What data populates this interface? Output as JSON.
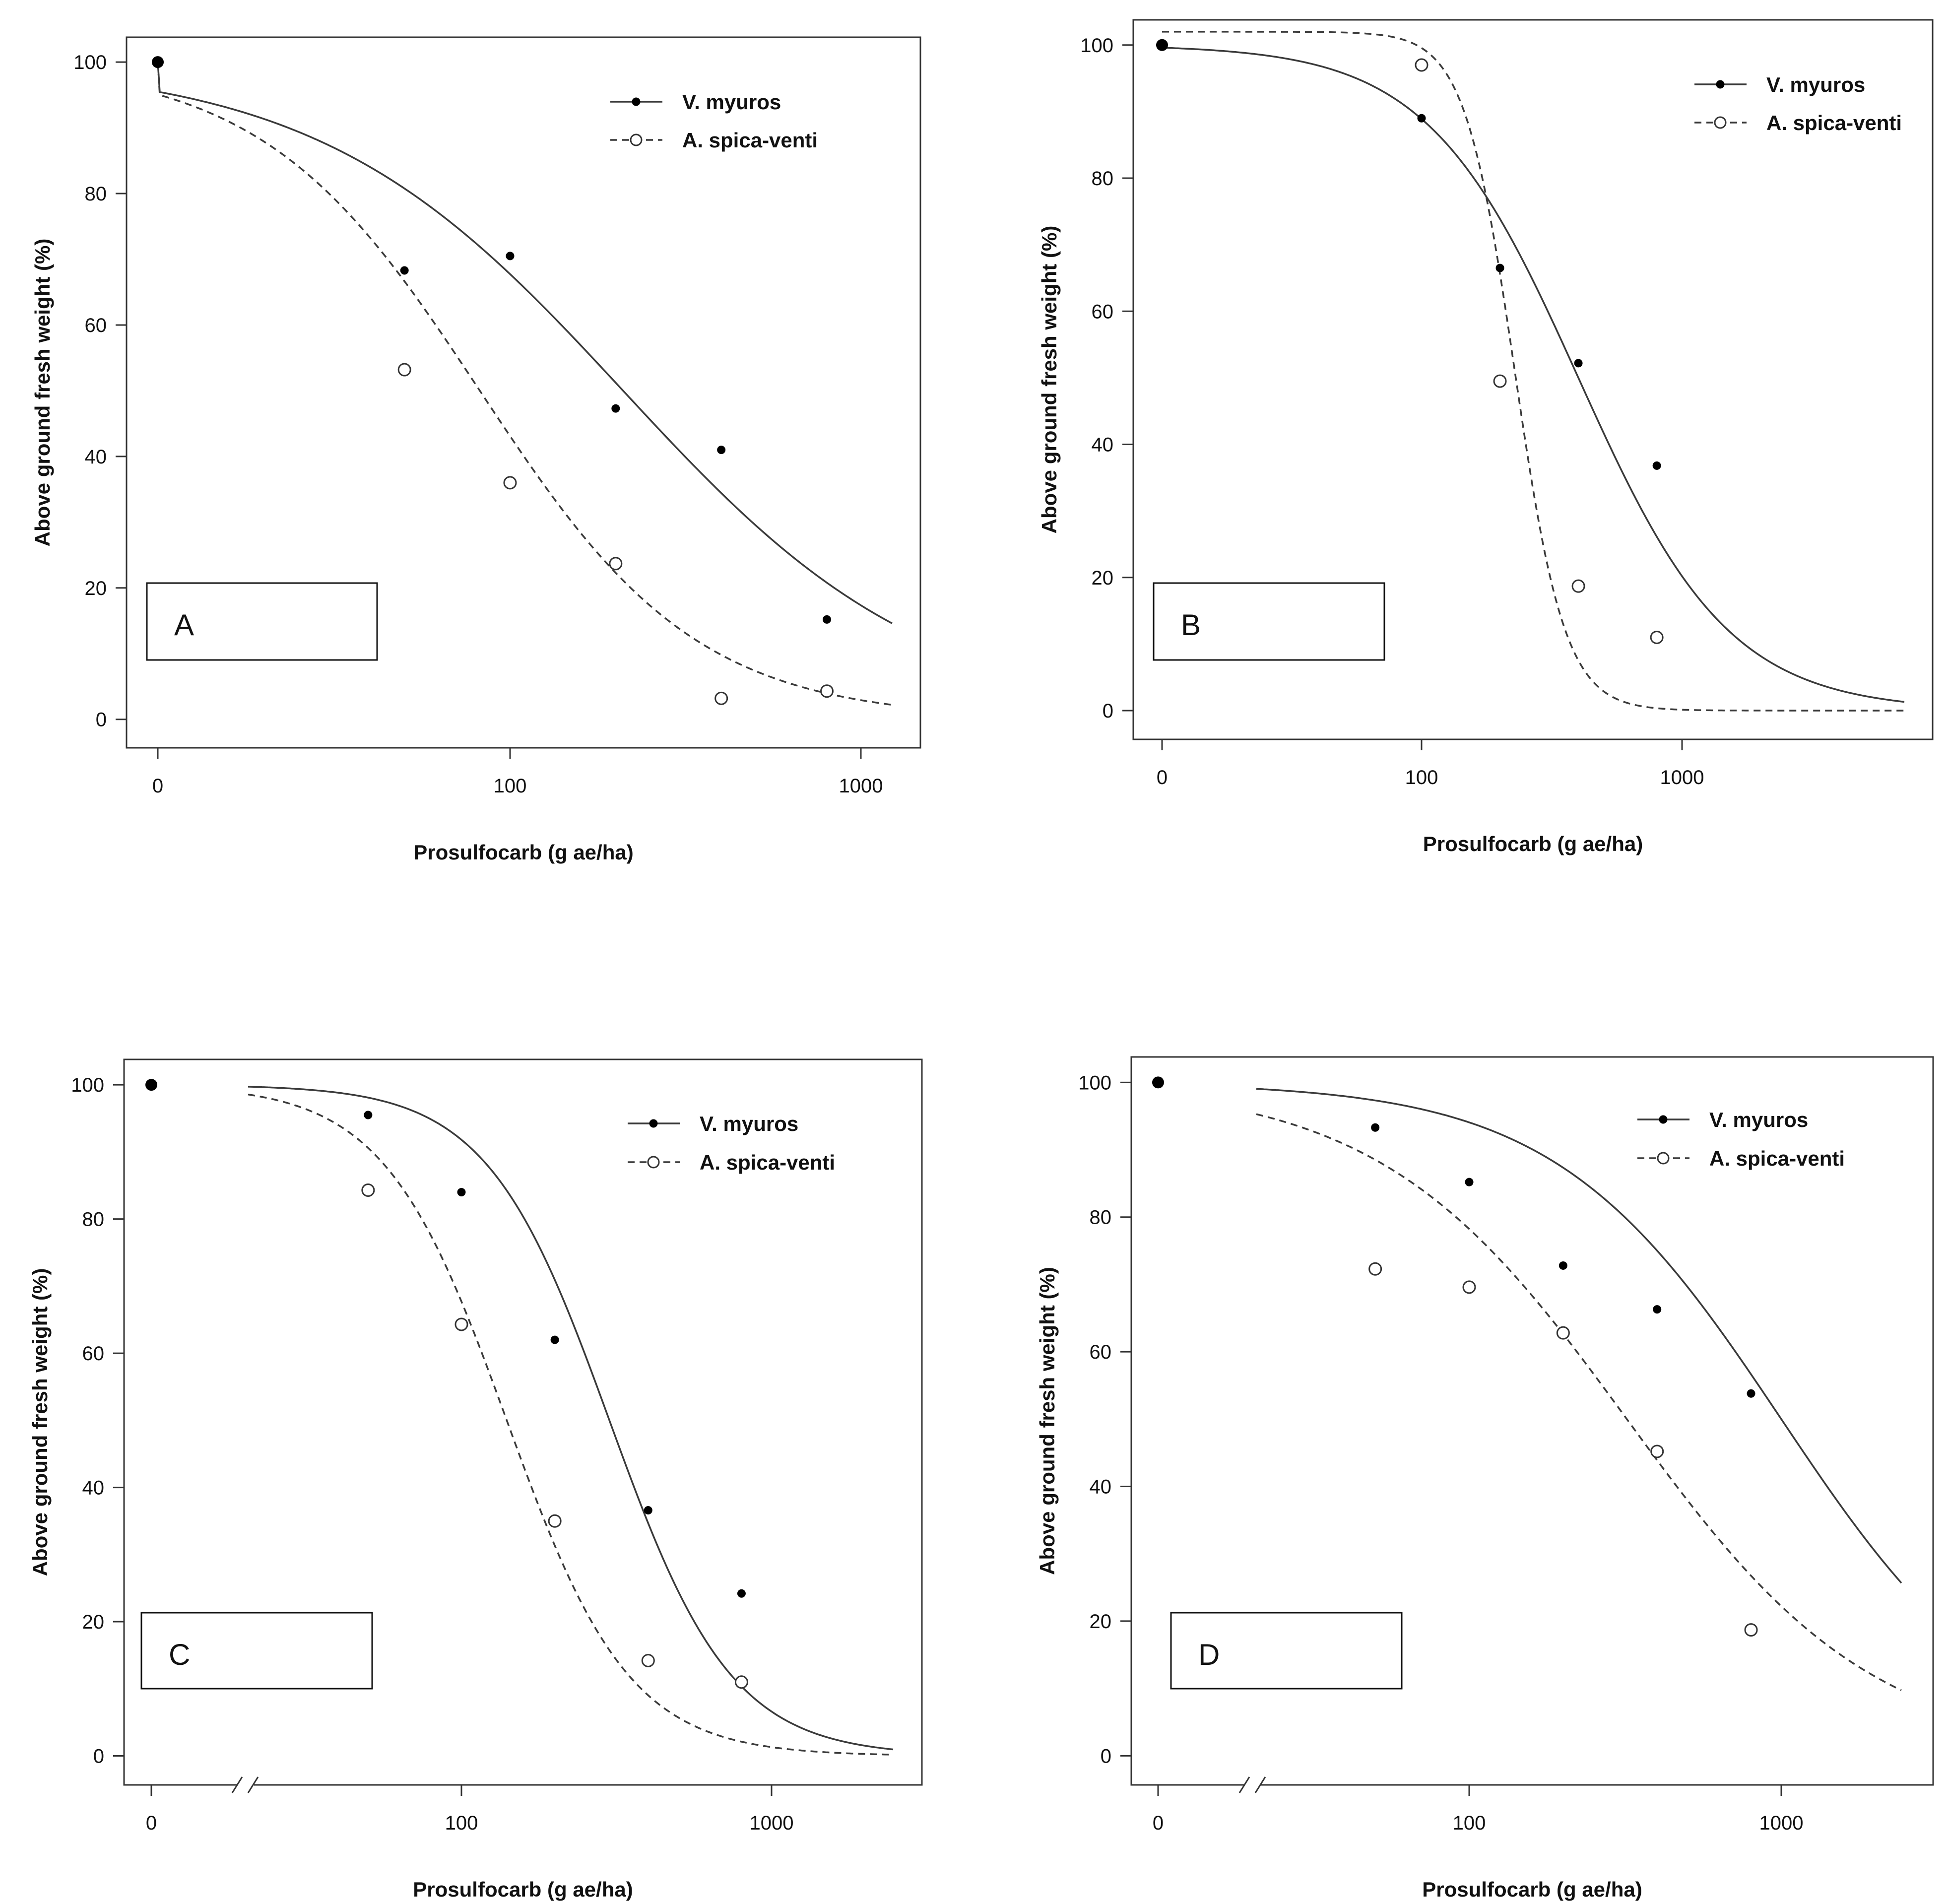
{
  "chart_data": [
    {
      "type": "scatter",
      "panel_label": "A",
      "title": "",
      "xlabel": "Prosulfocarb (g ae/ha)",
      "ylabel": "Above ground fresh weight (%)",
      "x_scale": "log",
      "xticks": [
        "0",
        "100",
        "1000"
      ],
      "yticks": [
        "0",
        "20",
        "40",
        "60",
        "80",
        "100"
      ],
      "ylim": [
        0,
        100
      ],
      "legend_position": "top-right",
      "series": [
        {
          "name": "V. myuros",
          "marker": "filled",
          "line": "solid",
          "x": [
            0,
            50,
            100,
            200,
            400,
            800
          ],
          "values": [
            100,
            68.3,
            70.5,
            47.3,
            41,
            15.2
          ],
          "curve": {
            "upper": 100,
            "ed50": 210,
            "slope": 1.0
          }
        },
        {
          "name": "A. spica-venti",
          "marker": "open",
          "line": "dashed",
          "x": [
            50,
            100,
            200,
            400,
            800
          ],
          "values": [
            53.2,
            36,
            23.7,
            3.2,
            4.3
          ],
          "curve": {
            "upper": 100,
            "ed50": 82,
            "slope": 1.4
          }
        }
      ]
    },
    {
      "type": "scatter",
      "panel_label": "B",
      "title": "",
      "xlabel": "Prosulfocarb (g ae/ha)",
      "ylabel": "Above ground fresh weight (%)",
      "x_scale": "log",
      "xticks": [
        "0",
        "100",
        "1000"
      ],
      "yticks": [
        "0",
        "20",
        "40",
        "60",
        "80",
        "100"
      ],
      "ylim": [
        0,
        100
      ],
      "legend_position": "top-right",
      "series": [
        {
          "name": "V. myuros",
          "marker": "filled",
          "line": "solid",
          "x": [
            0,
            100,
            200,
            400,
            800
          ],
          "values": [
            100,
            89,
            66.5,
            52.2,
            36.8
          ],
          "curve": {
            "upper": 100,
            "ed50": 400,
            "slope": 1.5
          }
        },
        {
          "name": "A. spica-venti",
          "marker": "open",
          "line": "dashed",
          "x": [
            100,
            200,
            400,
            800
          ],
          "values": [
            97,
            49.5,
            18.7,
            11
          ],
          "curve": {
            "upper": 102,
            "ed50": 228,
            "slope": 4.5
          }
        }
      ]
    },
    {
      "type": "scatter",
      "panel_label": "C",
      "title": "",
      "xlabel": "Prosulfocarb (g ae/ha)",
      "ylabel": "Above ground fresh weight (%)",
      "x_scale": "log",
      "xticks": [
        "0",
        "100",
        "1000"
      ],
      "yticks": [
        "0",
        "20",
        "40",
        "60",
        "80",
        "100"
      ],
      "ylim": [
        0,
        100
      ],
      "legend_position": "top-right",
      "series": [
        {
          "name": "V. myuros",
          "marker": "filled",
          "line": "solid",
          "x": [
            0,
            50,
            100,
            200,
            400,
            800
          ],
          "values": [
            100,
            95.5,
            84,
            62,
            36.6,
            24.2
          ],
          "curve": {
            "upper": 100,
            "ed50": 300,
            "slope": 2.2
          }
        },
        {
          "name": "A. spica-venti",
          "marker": "open",
          "line": "dashed",
          "x": [
            50,
            100,
            200,
            400,
            800
          ],
          "values": [
            84.3,
            64.3,
            35,
            14.2,
            11
          ],
          "curve": {
            "upper": 100,
            "ed50": 140,
            "slope": 2.2
          }
        }
      ]
    },
    {
      "type": "scatter",
      "panel_label": "D",
      "title": "",
      "xlabel": "Prosulfocarb (g ae/ha)",
      "ylabel": "Above ground fresh weight (%)",
      "x_scale": "log",
      "xticks": [
        "0",
        "100",
        "1000"
      ],
      "yticks": [
        "0",
        "20",
        "40",
        "60",
        "80",
        "100"
      ],
      "ylim": [
        0,
        100
      ],
      "legend_position": "top-right",
      "series": [
        {
          "name": "V. myuros",
          "marker": "filled",
          "line": "solid",
          "x": [
            0,
            50,
            100,
            200,
            400,
            800
          ],
          "values": [
            100,
            93.3,
            85.2,
            72.8,
            66.3,
            53.8
          ],
          "curve": {
            "upper": 100,
            "ed50": 1000,
            "slope": 1.2
          }
        },
        {
          "name": "A. spica-venti",
          "marker": "open",
          "line": "dashed",
          "x": [
            50,
            100,
            200,
            400,
            800
          ],
          "values": [
            72.3,
            69.6,
            62.8,
            45.2,
            18.7
          ],
          "curve": {
            "upper": 100,
            "ed50": 320,
            "slope": 1.1
          }
        }
      ]
    }
  ]
}
